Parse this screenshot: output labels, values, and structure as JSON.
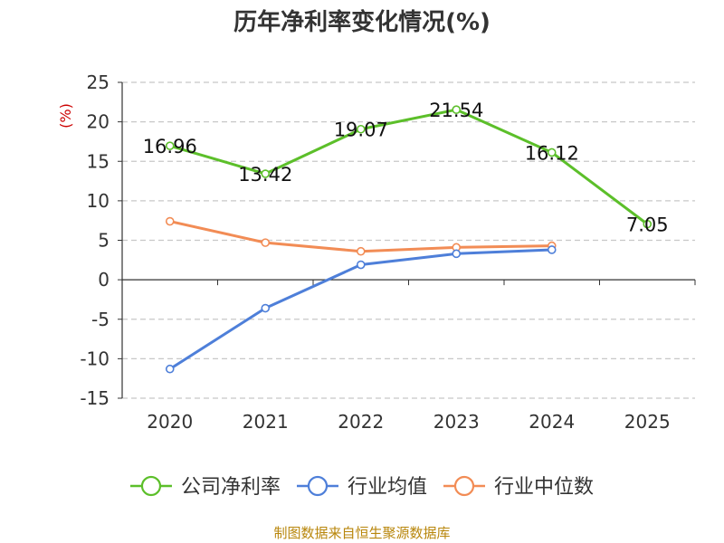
{
  "chart_data": {
    "type": "line",
    "title": "历年净利率变化情况(%)",
    "ylabel": "(%)",
    "categories": [
      "2020",
      "2021",
      "2022",
      "2023",
      "2024",
      "2025"
    ],
    "ylim": [
      -15,
      25
    ],
    "yticks": [
      25,
      20,
      15,
      10,
      5,
      0,
      -5,
      -10,
      -15
    ],
    "ytick_labels": [
      "25",
      "20",
      "15",
      "10",
      "5",
      "0",
      "-5",
      "-10",
      "-15"
    ],
    "grid": true,
    "legend_position": "bottom",
    "series": [
      {
        "name": "公司净利率",
        "color": "#5cbf2a",
        "values": [
          16.96,
          13.42,
          19.07,
          21.54,
          16.12,
          7.05
        ],
        "data_labels": [
          "16.96",
          "13.42",
          "19.07",
          "21.54",
          "16.12",
          "7.05"
        ]
      },
      {
        "name": "行业均值",
        "color": "#4e7fd9",
        "values": [
          -11.3,
          -3.6,
          1.9,
          3.3,
          3.8,
          null
        ]
      },
      {
        "name": "行业中位数",
        "color": "#f28c55",
        "values": [
          7.4,
          4.7,
          3.6,
          4.1,
          4.3,
          null
        ]
      }
    ],
    "source": "制图数据来自恒生聚源数据库",
    "source_color": "#b8860b",
    "ylabel_color": "#cc0000"
  }
}
